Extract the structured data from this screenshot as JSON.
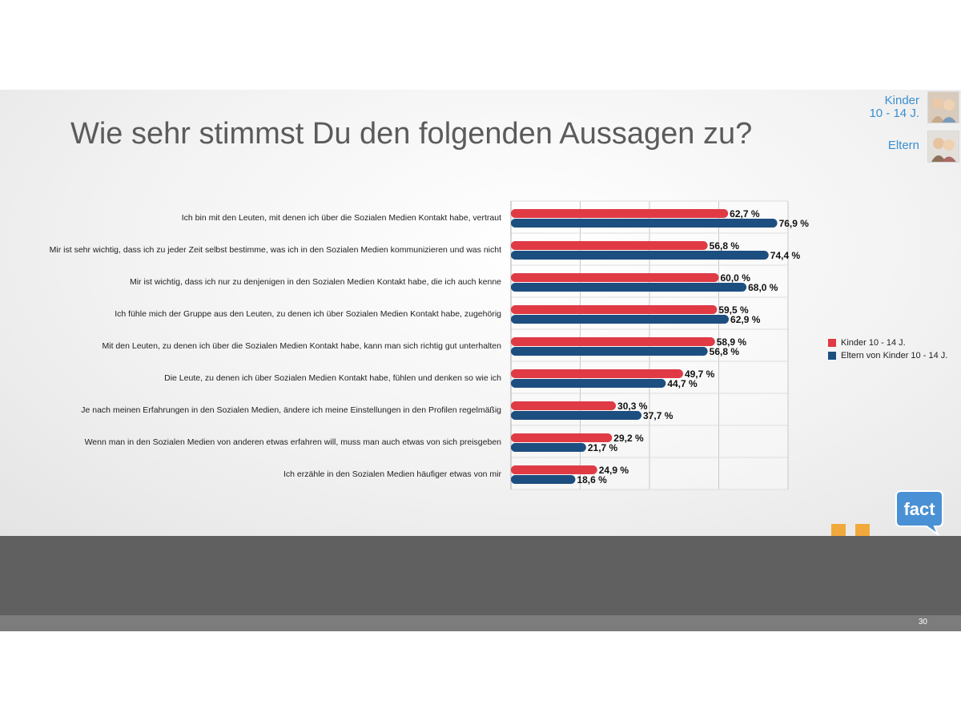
{
  "slide": {
    "title": "Wie sehr stimmst Du den folgenden Aussagen zu?",
    "audience": {
      "kids_line1": "Kinder",
      "kids_line2": "10 - 14 J.",
      "parents": "Eltern"
    },
    "logo_text": "fact",
    "page_number": "30"
  },
  "colors": {
    "kids": "#e03a45",
    "parents": "#1d4e80",
    "accent_blue": "#3a8fcf",
    "quote_orange": "#f2a93b"
  },
  "chart_data": {
    "type": "bar",
    "orientation": "horizontal",
    "categories": [
      "Ich bin mit den Leuten, mit denen ich über die Sozialen Medien Kontakt habe, vertraut",
      "Mir ist sehr wichtig, dass ich zu jeder Zeit selbst bestimme, was ich in den Sozialen Medien kommunizieren und was nicht",
      "Mir ist wichtig, dass ich nur zu denjenigen in den Sozialen Medien Kontakt habe, die ich auch kenne",
      "Ich fühle mich der Gruppe aus den Leuten, zu denen ich über Sozialen Medien Kontakt habe, zugehörig",
      "Mit den Leuten, zu denen ich über die Sozialen Medien Kontakt habe, kann man sich richtig gut unterhalten",
      "Die Leute, zu denen ich über Sozialen Medien Kontakt habe, fühlen und denken so wie ich",
      "Je nach meinen Erfahrungen in den Sozialen Medien, ändere ich meine Einstellungen in den Profilen regelmäßig",
      "Wenn man in den Sozialen Medien von anderen etwas erfahren will, muss man auch etwas von sich preisgeben",
      "Ich erzähle in den Sozialen Medien häufiger etwas von mir"
    ],
    "series": [
      {
        "name": "Kinder 10 - 14 J.",
        "values": [
          62.7,
          56.8,
          60.0,
          59.5,
          58.9,
          49.7,
          30.3,
          29.2,
          24.9
        ],
        "labels": [
          "62,7 %",
          "56,8 %",
          "60,0 %",
          "59,5 %",
          "58,9 %",
          "49,7 %",
          "30,3 %",
          "29,2 %",
          "24,9 %"
        ]
      },
      {
        "name": "Eltern von Kinder 10 - 14 J.",
        "values": [
          76.9,
          74.4,
          68.0,
          62.9,
          56.8,
          44.7,
          37.7,
          21.7,
          18.6
        ],
        "labels": [
          "76,9 %",
          "74,4 %",
          "68,0 %",
          "62,9 %",
          "56,8 %",
          "44,7 %",
          "37,7 %",
          "21,7 %",
          "18,6 %"
        ]
      }
    ],
    "xlim": [
      0,
      80
    ],
    "grid": true,
    "legend_position": "right"
  }
}
